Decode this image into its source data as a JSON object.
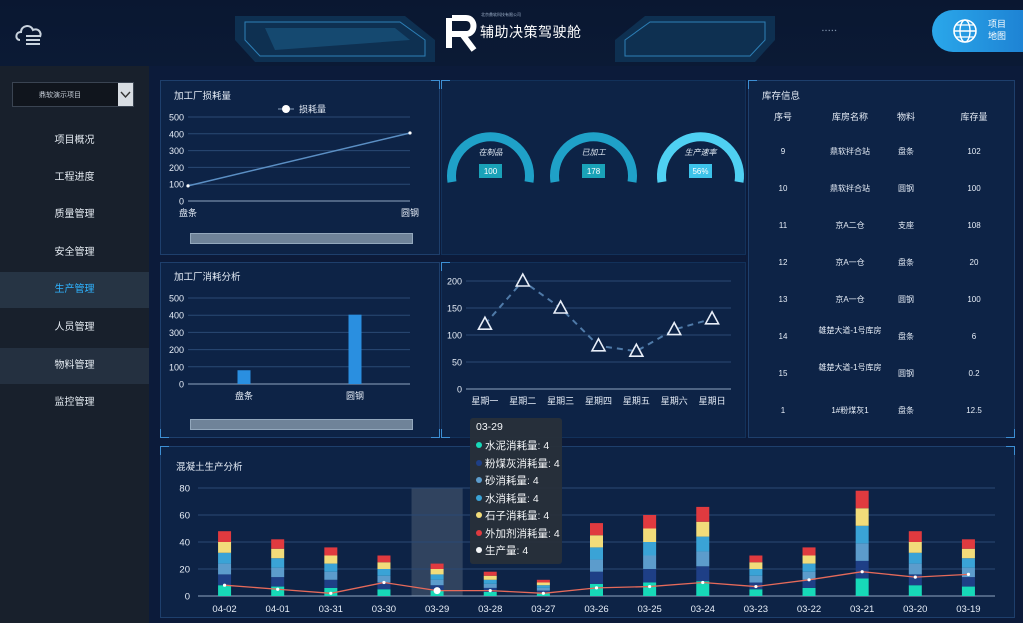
{
  "header": {
    "title": "辅助决策驾驶舱",
    "logo_letters": "R",
    "logo_subtitle": "北京鼎软科技有限公司",
    "dots": "▪ ▪ ▪ ▪ ▪",
    "map_button_label": "项目地图"
  },
  "sidebar": {
    "project_select": "鼎软演示项目",
    "items": [
      {
        "label": "项目概况",
        "state": "normal"
      },
      {
        "label": "工程进度",
        "state": "normal"
      },
      {
        "label": "质量管理",
        "state": "normal"
      },
      {
        "label": "安全管理",
        "state": "normal"
      },
      {
        "label": "生产管理",
        "state": "active"
      },
      {
        "label": "人员管理",
        "state": "normal"
      },
      {
        "label": "物料管理",
        "state": "highlight"
      },
      {
        "label": "监控管理",
        "state": "normal"
      }
    ]
  },
  "gauges": [
    {
      "label": "在制品",
      "value": "100"
    },
    {
      "label": "已加工",
      "value": "178"
    },
    {
      "label": "生产速率",
      "value": "56%"
    }
  ],
  "inventory": {
    "title": "库存信息",
    "columns": [
      "序号",
      "库房名称",
      "物料",
      "库存量"
    ],
    "rows": [
      [
        "9",
        "鼎软拌合站",
        "盘条",
        "102"
      ],
      [
        "10",
        "鼎软拌合站",
        "圆钢",
        "100"
      ],
      [
        "11",
        "京A二仓",
        "支座",
        "108"
      ],
      [
        "12",
        "京A一仓",
        "盘条",
        "20"
      ],
      [
        "13",
        "京A一仓",
        "圆钢",
        "100"
      ],
      [
        "14",
        "雄楚大道-1号库房",
        "盘条",
        "6"
      ],
      [
        "15",
        "雄楚大道-1号库房",
        "圆钢",
        "0.2"
      ],
      [
        "1",
        "1#粉煤灰1",
        "盘条",
        "12.5"
      ]
    ]
  },
  "tooltip": {
    "title": "03-29",
    "rows": [
      {
        "label": "水泥消耗量: 4",
        "color": "#17d9b8"
      },
      {
        "label": "粉煤灰消耗量: 4",
        "color": "#1e3f86"
      },
      {
        "label": "砂消耗量: 4",
        "color": "#5c9ccc"
      },
      {
        "label": "水消耗量: 4",
        "color": "#3aa3d6"
      },
      {
        "label": "石子消耗量: 4",
        "color": "#f2dc7a"
      },
      {
        "label": "外加剂消耗量: 4",
        "color": "#e03a3f"
      },
      {
        "label": "生产量: 4",
        "color": "#f4f6f8"
      }
    ]
  },
  "chart_data": [
    {
      "type": "line",
      "title": "加工厂损耗量",
      "legend": [
        "损耗量"
      ],
      "legend_position": "top-center",
      "categories": [
        "盘条",
        "圆钢"
      ],
      "series": [
        {
          "name": "损耗量",
          "values": [
            90,
            405
          ]
        }
      ],
      "ylim": [
        0,
        500
      ],
      "yticks": [
        0,
        100,
        200,
        300,
        400,
        500
      ],
      "grid": true,
      "color": "#5b8fc4"
    },
    {
      "type": "bar",
      "title": "加工厂消耗分析",
      "categories": [
        "盘条",
        "圆钢"
      ],
      "values": [
        80,
        403
      ],
      "ylim": [
        0,
        500
      ],
      "yticks": [
        0,
        100,
        200,
        300,
        400,
        500
      ],
      "grid": true,
      "color": "#2a8fe0"
    },
    {
      "type": "line",
      "title": "",
      "categories": [
        "星期一",
        "星期二",
        "星期三",
        "星期四",
        "星期五",
        "星期六",
        "星期日"
      ],
      "values": [
        120,
        200,
        150,
        80,
        70,
        110,
        130
      ],
      "ylim": [
        0,
        200
      ],
      "yticks": [
        0,
        50,
        100,
        150,
        200
      ],
      "grid": true,
      "line_style": "dashed",
      "marker": "triangle",
      "color": "#4f7aa8"
    },
    {
      "type": "bar",
      "title": "混凝土生产分析",
      "stacked": true,
      "categories": [
        "04-02",
        "04-01",
        "03-31",
        "03-30",
        "03-29",
        "03-28",
        "03-27",
        "03-26",
        "03-25",
        "03-24",
        "03-23",
        "03-22",
        "03-21",
        "03-20",
        "03-19"
      ],
      "ylim": [
        0,
        80
      ],
      "yticks": [
        0,
        20,
        40,
        60,
        80
      ],
      "grid": true,
      "highlight_category": "03-29",
      "series": [
        {
          "name": "水泥消耗量",
          "color": "#17d9b8",
          "values": [
            8,
            7,
            6,
            5,
            4,
            3,
            2,
            9,
            10,
            11,
            5,
            6,
            13,
            8,
            7
          ]
        },
        {
          "name": "粉煤灰消耗量",
          "color": "#1e3f86",
          "values": [
            8,
            7,
            6,
            5,
            4,
            3,
            2,
            9,
            10,
            11,
            5,
            6,
            13,
            8,
            7
          ]
        },
        {
          "name": "砂消耗量",
          "color": "#5c9ccc",
          "values": [
            8,
            7,
            6,
            5,
            4,
            3,
            2,
            9,
            10,
            11,
            5,
            6,
            13,
            8,
            7
          ]
        },
        {
          "name": "水消耗量",
          "color": "#3aa3d6",
          "values": [
            8,
            7,
            6,
            5,
            4,
            3,
            2,
            9,
            10,
            11,
            5,
            6,
            13,
            8,
            7
          ]
        },
        {
          "name": "石子消耗量",
          "color": "#f2dc7a",
          "values": [
            8,
            7,
            6,
            5,
            4,
            3,
            2,
            9,
            10,
            11,
            5,
            6,
            13,
            8,
            7
          ]
        },
        {
          "name": "外加剂消耗量",
          "color": "#e03a3f",
          "values": [
            8,
            7,
            6,
            5,
            4,
            3,
            2,
            9,
            10,
            11,
            5,
            6,
            13,
            8,
            7
          ]
        }
      ],
      "line_series": {
        "name": "生产量",
        "color": "#e66a5a",
        "values": [
          8,
          5,
          2,
          10,
          4,
          4,
          2,
          6,
          7,
          10,
          7,
          12,
          18,
          14,
          16
        ]
      }
    }
  ]
}
